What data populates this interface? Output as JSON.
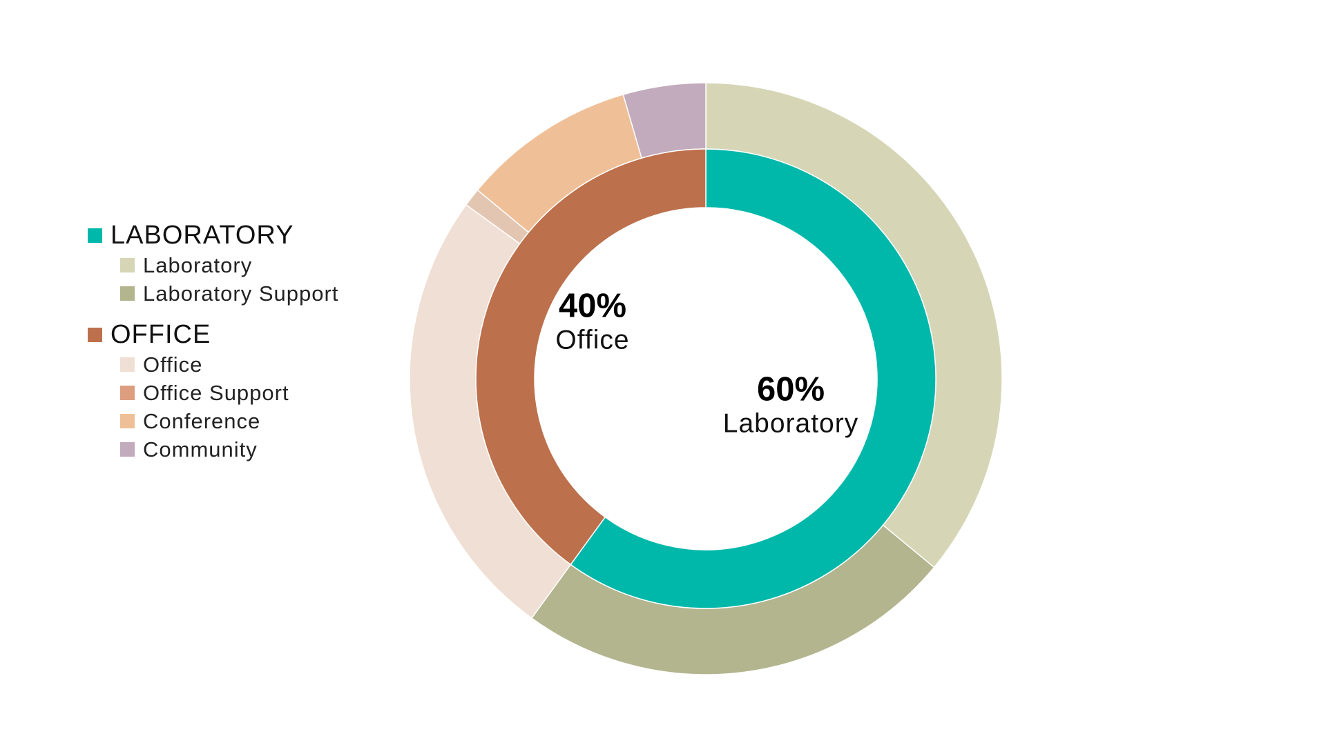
{
  "chart_data": {
    "type": "pie",
    "inner_ring": [
      {
        "label": "Laboratory",
        "percent": 60,
        "value": 60,
        "color": "#00b8aa"
      },
      {
        "label": "Office",
        "percent": 40,
        "value": 40,
        "color": "#bd704c"
      }
    ],
    "outer_ring": [
      {
        "label": "Laboratory",
        "value": 36,
        "color": "#d6d6b6"
      },
      {
        "label": "Laboratory Support",
        "value": 24,
        "color": "#b3b58f"
      },
      {
        "label": "Office",
        "value": 25,
        "color": "#f0dfd4"
      },
      {
        "label": "Office Support",
        "value": 1,
        "color": "#e3c6b2"
      },
      {
        "label": "Conference",
        "value": 9.5,
        "color": "#efc097"
      },
      {
        "label": "Community",
        "value": 4.5,
        "color": "#c2abbd"
      }
    ],
    "center_labels": [
      {
        "percent_text": "60%",
        "name": "Laboratory"
      },
      {
        "percent_text": "40%",
        "name": "Office"
      }
    ],
    "legend": {
      "placement": "left",
      "groups": [
        {
          "label": "LABORATORY",
          "color": "#00b8aa",
          "items": [
            {
              "label": "Laboratory",
              "color": "#d6d6b6"
            },
            {
              "label": "Laboratory Support",
              "color": "#b3b58f"
            }
          ]
        },
        {
          "label": "OFFICE",
          "color": "#bd704c",
          "items": [
            {
              "label": "Office",
              "color": "#f0dfd4"
            },
            {
              "label": "Office Support",
              "color": "#dd9e80"
            },
            {
              "label": "Conference",
              "color": "#efc097"
            },
            {
              "label": "Community",
              "color": "#c2abbd"
            }
          ]
        }
      ]
    }
  }
}
